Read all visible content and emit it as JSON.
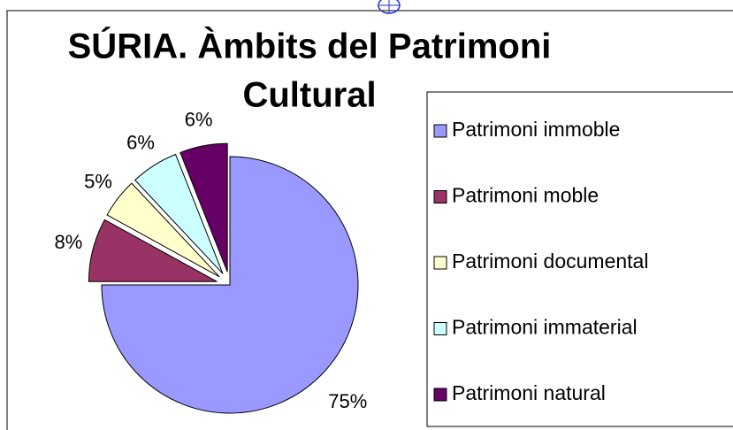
{
  "chart_data": {
    "type": "pie",
    "title_lines": [
      "SÚRIA. Àmbits del Patrimoni",
      "Cultural"
    ],
    "categories": [
      "Patrimoni immoble",
      "Patrimoni moble",
      "Patrimoni documental",
      "Patrimoni immaterial",
      "Patrimoni natural"
    ],
    "values": [
      75,
      8,
      5,
      6,
      6
    ],
    "value_labels": [
      "75%",
      "8%",
      "5%",
      "6%",
      "6%"
    ],
    "colors": [
      "#9999ff",
      "#993366",
      "#ffffcc",
      "#ccffff",
      "#660066"
    ],
    "legend": "right"
  }
}
